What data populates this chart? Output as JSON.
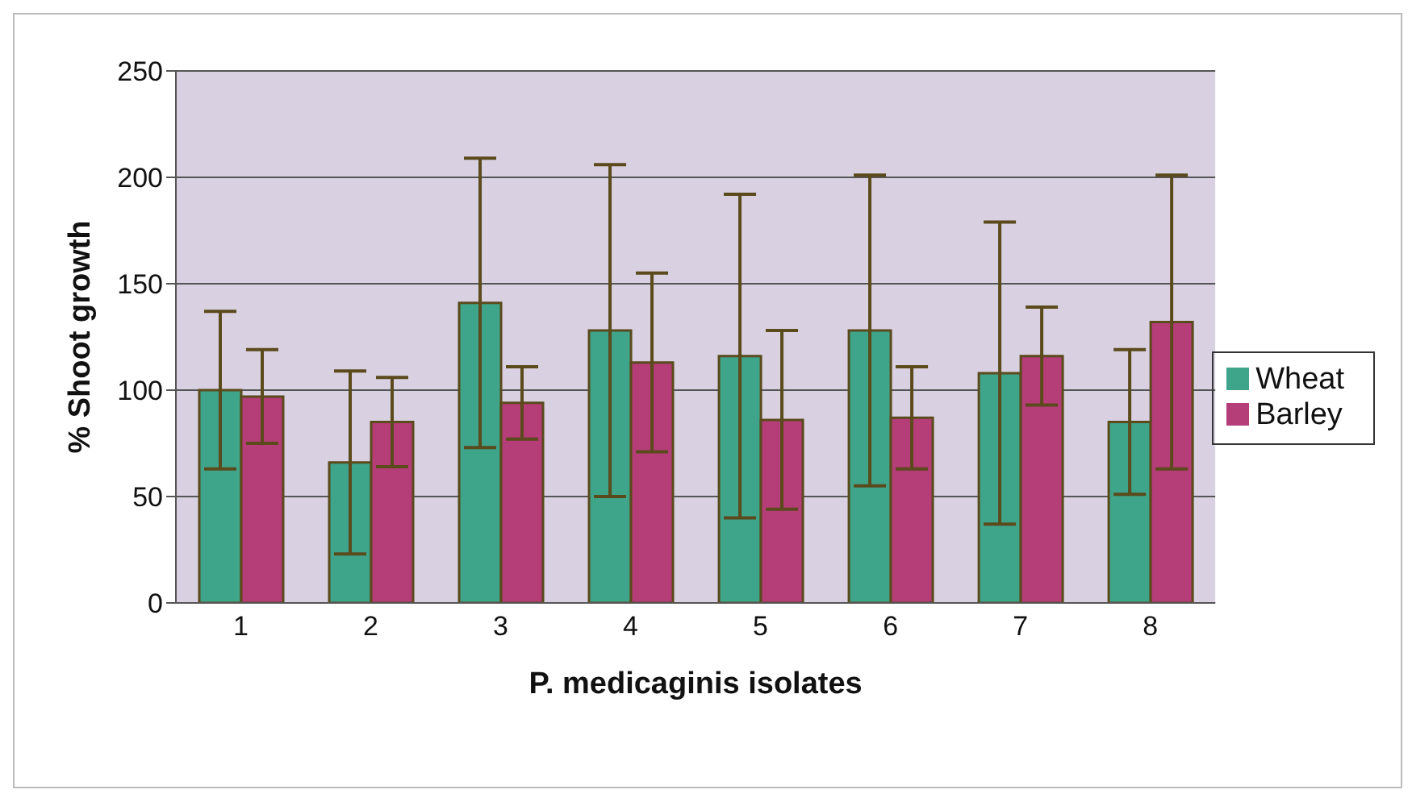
{
  "chart_data": {
    "type": "bar",
    "xlabel": "P. medicaginis isolates",
    "ylabel": "% Shoot growth",
    "categories": [
      "1",
      "2",
      "3",
      "4",
      "5",
      "6",
      "7",
      "8"
    ],
    "series": [
      {
        "name": "Wheat",
        "color": "#3fa58a",
        "values": [
          100,
          66,
          141,
          128,
          116,
          128,
          108,
          85
        ],
        "errors": [
          37,
          43,
          68,
          78,
          76,
          73,
          71,
          34
        ]
      },
      {
        "name": "Barley",
        "color": "#b53d78",
        "values": [
          97,
          85,
          94,
          113,
          86,
          87,
          116,
          132
        ],
        "errors": [
          22,
          21,
          17,
          42,
          42,
          24,
          23,
          69
        ]
      }
    ],
    "ylim": [
      0,
      250
    ],
    "yticks": [
      0,
      50,
      100,
      150,
      200,
      250
    ],
    "grid": "y",
    "legend": "right"
  }
}
